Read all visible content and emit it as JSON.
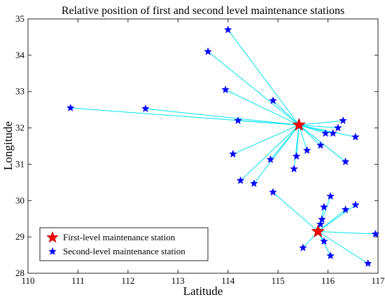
{
  "chart_data": {
    "type": "scatter",
    "title": "Relative position of first and second level maintenance stations",
    "xlabel": "Latitude",
    "ylabel": "Longitude",
    "xlim": [
      110,
      117
    ],
    "ylim": [
      28,
      35
    ],
    "xticks": [
      "110",
      "111",
      "112",
      "113",
      "114",
      "115",
      "116",
      "117"
    ],
    "yticks": [
      "28",
      "29",
      "30",
      "31",
      "32",
      "33",
      "34",
      "35"
    ],
    "grid": false,
    "legend_position": "bottom-left",
    "colors": {
      "first_level": "#ff0000",
      "first_level_edge": "#b00000",
      "second_level": "#0000ff",
      "link": "#00e5ee"
    },
    "series": [
      {
        "name": "First-level maintenance station",
        "marker": "large-star",
        "points": [
          {
            "x": 115.42,
            "y": 32.08
          },
          {
            "x": 115.8,
            "y": 29.15
          }
        ]
      },
      {
        "name": "Second-level maintenance station",
        "marker": "small-star",
        "points": [
          {
            "x": 114.0,
            "y": 34.7,
            "hub": 0
          },
          {
            "x": 113.6,
            "y": 34.1,
            "hub": 0
          },
          {
            "x": 113.95,
            "y": 33.05,
            "hub": 0
          },
          {
            "x": 114.9,
            "y": 32.75,
            "hub": 0
          },
          {
            "x": 110.85,
            "y": 32.55,
            "hub": 0
          },
          {
            "x": 112.35,
            "y": 32.53,
            "hub": 0
          },
          {
            "x": 114.2,
            "y": 32.2,
            "hub": 0
          },
          {
            "x": 114.1,
            "y": 31.28,
            "hub": 0
          },
          {
            "x": 114.85,
            "y": 31.13,
            "hub": 0
          },
          {
            "x": 115.37,
            "y": 31.22,
            "hub": 0
          },
          {
            "x": 115.32,
            "y": 30.87,
            "hub": 0
          },
          {
            "x": 115.58,
            "y": 31.38,
            "hub": 0
          },
          {
            "x": 115.85,
            "y": 31.52,
            "hub": 0
          },
          {
            "x": 114.25,
            "y": 30.55,
            "hub": 0
          },
          {
            "x": 114.52,
            "y": 30.47,
            "hub": 0
          },
          {
            "x": 116.3,
            "y": 32.2,
            "hub": 0
          },
          {
            "x": 116.2,
            "y": 32.0,
            "hub": 0
          },
          {
            "x": 116.1,
            "y": 31.85,
            "hub": 0
          },
          {
            "x": 115.95,
            "y": 31.85,
            "hub": 0
          },
          {
            "x": 116.55,
            "y": 31.75,
            "hub": 0
          },
          {
            "x": 116.35,
            "y": 31.07,
            "hub": 0
          },
          {
            "x": 114.9,
            "y": 30.23,
            "hub": 1
          },
          {
            "x": 116.05,
            "y": 30.12,
            "hub": 1
          },
          {
            "x": 115.92,
            "y": 29.82,
            "hub": 1
          },
          {
            "x": 115.88,
            "y": 29.48,
            "hub": 1
          },
          {
            "x": 115.85,
            "y": 29.35,
            "hub": 1
          },
          {
            "x": 116.55,
            "y": 29.88,
            "hub": 1
          },
          {
            "x": 116.35,
            "y": 29.75,
            "hub": 1
          },
          {
            "x": 116.95,
            "y": 29.08,
            "hub": 1
          },
          {
            "x": 115.92,
            "y": 28.88,
            "hub": 1
          },
          {
            "x": 115.5,
            "y": 28.7,
            "hub": 1
          },
          {
            "x": 116.05,
            "y": 28.48,
            "hub": 1
          },
          {
            "x": 116.8,
            "y": 28.27,
            "hub": 1
          }
        ]
      }
    ]
  }
}
